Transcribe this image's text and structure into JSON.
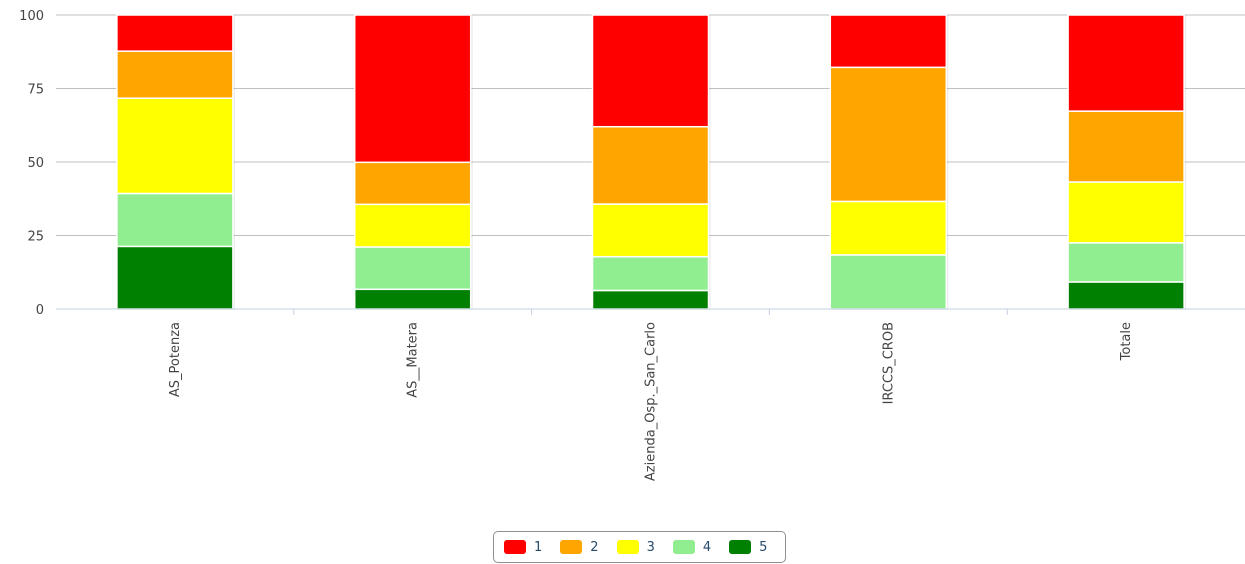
{
  "chart_data": {
    "type": "bar",
    "stacked": true,
    "categories": [
      "AS_Potenza",
      "AS__Matera",
      "Azienda_Osp._San_Carlo",
      "IRCCS_CROB",
      "Totale"
    ],
    "series": [
      {
        "name": "5",
        "color": "#008000",
        "values": [
          21.3,
          6.7,
          6.3,
          0,
          9.2
        ]
      },
      {
        "name": "4",
        "color": "#90ee90",
        "values": [
          18.0,
          14.4,
          11.5,
          18.4,
          13.3
        ]
      },
      {
        "name": "3",
        "color": "#ffff00",
        "values": [
          32.4,
          14.5,
          17.9,
          18.2,
          20.7
        ]
      },
      {
        "name": "2",
        "color": "#ffa500",
        "values": [
          16.0,
          14.3,
          26.3,
          45.6,
          24.1
        ]
      },
      {
        "name": "1",
        "color": "#ff0000",
        "values": [
          12.3,
          50.1,
          38.0,
          17.8,
          32.7
        ]
      }
    ],
    "yticks": [
      "0",
      "25",
      "50",
      "75",
      "100"
    ],
    "ylim": [
      0,
      100
    ],
    "xlabel": "",
    "ylabel": "",
    "legend_position": "bottom-center",
    "grid": true
  },
  "legend": {
    "items": [
      {
        "label": "1",
        "color": "#ff0000"
      },
      {
        "label": "2",
        "color": "#ffa500"
      },
      {
        "label": "3",
        "color": "#ffff00"
      },
      {
        "label": "4",
        "color": "#90ee90"
      },
      {
        "label": "5",
        "color": "#008000"
      }
    ]
  }
}
